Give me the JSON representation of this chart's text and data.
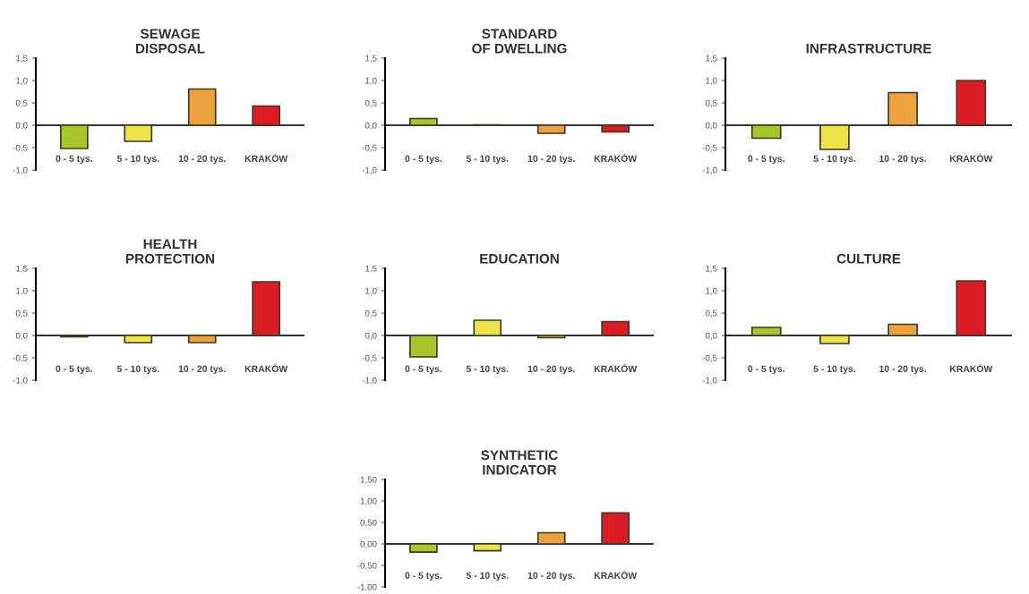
{
  "chart_data": [
    {
      "type": "bar",
      "title": "SEWAGE\nDISPOSAL",
      "categories": [
        "0 - 5 tys.",
        "5 - 10 tys.",
        "10 - 20 tys.",
        "KRAKÓW"
      ],
      "values": [
        -0.52,
        -0.36,
        0.81,
        0.43
      ],
      "colors": [
        "#a8c62a",
        "#eee44a",
        "#eea23e",
        "#dc1c24"
      ],
      "ylim": [
        -1.0,
        1.5
      ],
      "yticks": [
        {
          "value": -1.0,
          "label": "-1,0"
        },
        {
          "value": -0.5,
          "label": "-0,5"
        },
        {
          "value": 0.0,
          "label": "0,0"
        },
        {
          "value": 0.5,
          "label": "0,5"
        },
        {
          "value": 1.0,
          "label": "1,0"
        },
        {
          "value": 1.5,
          "label": "1,5"
        }
      ],
      "ref_lines": [
        {
          "axis": "y",
          "value": 0,
          "color": "#333333"
        }
      ]
    },
    {
      "type": "bar",
      "title": "STANDARD\nOF DWELLING",
      "categories": [
        "0 - 5 tys.",
        "5 - 10 tys.",
        "10 - 20 tys.",
        "KRAKÓW"
      ],
      "values": [
        0.15,
        0.01,
        -0.18,
        -0.15
      ],
      "colors": [
        "#a8c62a",
        "#eee44a",
        "#eea23e",
        "#dc1c24"
      ],
      "ylim": [
        -1.0,
        1.5
      ],
      "yticks": [
        {
          "value": -1.0,
          "label": "-1,0"
        },
        {
          "value": -0.5,
          "label": "-0,5"
        },
        {
          "value": 0.0,
          "label": "0,0"
        },
        {
          "value": 0.5,
          "label": "0,5"
        },
        {
          "value": 1.0,
          "label": "1,0"
        },
        {
          "value": 1.5,
          "label": "1,5"
        }
      ],
      "ref_lines": [
        {
          "axis": "y",
          "value": 0,
          "color": "#333333"
        }
      ]
    },
    {
      "type": "bar",
      "title": "INFRASTRUCTURE",
      "categories": [
        "0 - 5 tys.",
        "5 - 10 tys.",
        "10 - 20 tys.",
        "KRAKÓW"
      ],
      "values": [
        -0.29,
        -0.54,
        0.73,
        1.0
      ],
      "colors": [
        "#a8c62a",
        "#eee44a",
        "#eea23e",
        "#dc1c24"
      ],
      "ylim": [
        -1.0,
        1.5
      ],
      "yticks": [
        {
          "value": -1.0,
          "label": "-1,0"
        },
        {
          "value": -0.5,
          "label": "-0,5"
        },
        {
          "value": 0.0,
          "label": "0,0"
        },
        {
          "value": 0.5,
          "label": "0,5"
        },
        {
          "value": 1.0,
          "label": "1,0"
        },
        {
          "value": 1.5,
          "label": "1,5"
        }
      ],
      "ref_lines": [
        {
          "axis": "y",
          "value": 0,
          "color": "#333333"
        }
      ]
    },
    {
      "type": "bar",
      "title": "HEALTH\nPROTECTION",
      "categories": [
        "0 - 5 tys.",
        "5 - 10 tys.",
        "10 - 20 tys.",
        "KRAKÓW"
      ],
      "values": [
        -0.03,
        -0.16,
        -0.16,
        1.2
      ],
      "colors": [
        "#a8c62a",
        "#eee44a",
        "#eea23e",
        "#dc1c24"
      ],
      "ylim": [
        -1.0,
        1.5
      ],
      "yticks": [
        {
          "value": -1.0,
          "label": "-1,0"
        },
        {
          "value": -0.5,
          "label": "-0,5"
        },
        {
          "value": 0.0,
          "label": "0,0"
        },
        {
          "value": 0.5,
          "label": "0,5"
        },
        {
          "value": 1.0,
          "label": "1,0"
        },
        {
          "value": 1.5,
          "label": "1,5"
        }
      ],
      "ref_lines": [
        {
          "axis": "y",
          "value": 0,
          "color": "#333333"
        }
      ]
    },
    {
      "type": "bar",
      "title": "EDUCATION",
      "categories": [
        "0 - 5 tys.",
        "5 - 10 tys.",
        "10 - 20 tys.",
        "KRAKÓW"
      ],
      "values": [
        -0.48,
        0.34,
        -0.05,
        0.31
      ],
      "colors": [
        "#a8c62a",
        "#eee44a",
        "#eea23e",
        "#dc1c24"
      ],
      "ylim": [
        -1.0,
        1.5
      ],
      "yticks": [
        {
          "value": -1.0,
          "label": "-1,0"
        },
        {
          "value": -0.5,
          "label": "-0,5"
        },
        {
          "value": 0.0,
          "label": "0,0"
        },
        {
          "value": 0.5,
          "label": "0,5"
        },
        {
          "value": 1.0,
          "label": "1,0"
        },
        {
          "value": 1.5,
          "label": "1,5"
        }
      ],
      "ref_lines": [
        {
          "axis": "y",
          "value": 0,
          "color": "#333333"
        }
      ]
    },
    {
      "type": "bar",
      "title": "CULTURE",
      "categories": [
        "0 - 5 tys.",
        "5 - 10 tys.",
        "10 - 20 tys.",
        "KRAKÓW"
      ],
      "values": [
        0.18,
        -0.18,
        0.25,
        1.22
      ],
      "colors": [
        "#a8c62a",
        "#eee44a",
        "#eea23e",
        "#dc1c24"
      ],
      "ylim": [
        -1.0,
        1.5
      ],
      "yticks": [
        {
          "value": -1.0,
          "label": "-1,0"
        },
        {
          "value": -0.5,
          "label": "-0,5"
        },
        {
          "value": 0.0,
          "label": "0,0"
        },
        {
          "value": 0.5,
          "label": "0,5"
        },
        {
          "value": 1.0,
          "label": "1,0"
        },
        {
          "value": 1.5,
          "label": "1,5"
        }
      ],
      "ref_lines": [
        {
          "axis": "y",
          "value": 0,
          "color": "#333333"
        }
      ]
    },
    {
      "type": "bar",
      "title": "SYNTHETIC\nINDICATOR",
      "categories": [
        "0 - 5 tys.",
        "5 - 10 tys.",
        "10 - 20 tys.",
        "KRAKÓW"
      ],
      "values": [
        -0.19,
        -0.16,
        0.26,
        0.72
      ],
      "colors": [
        "#a8c62a",
        "#eee44a",
        "#eea23e",
        "#dc1c24"
      ],
      "ylim": [
        -1.0,
        1.5
      ],
      "yticks": [
        {
          "value": -1.0,
          "label": "-1,00"
        },
        {
          "value": -0.5,
          "label": "-0,50"
        },
        {
          "value": 0.0,
          "label": "0,00"
        },
        {
          "value": 0.5,
          "label": "0,50"
        },
        {
          "value": 1.0,
          "label": "1,00"
        },
        {
          "value": 1.5,
          "label": "1,50"
        }
      ],
      "ref_lines": [
        {
          "axis": "y",
          "value": 0,
          "color": "#333333"
        }
      ]
    }
  ]
}
